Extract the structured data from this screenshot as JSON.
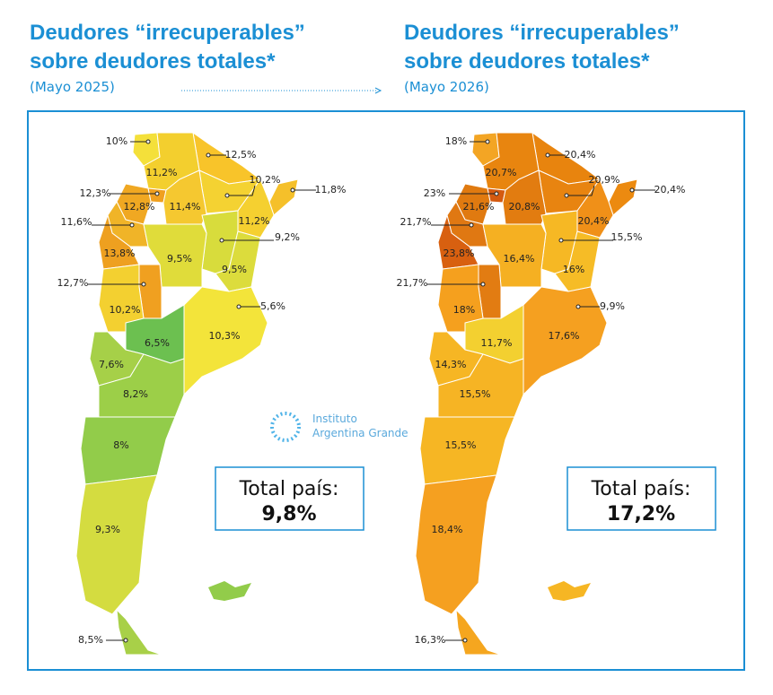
{
  "maps": [
    {
      "title_line1": "Deudores “irrecuperables”",
      "title_line2": "sobre deudores totales*",
      "subtitle": "(Mayo 2025)",
      "regions": [
        {
          "label": "10%",
          "color": "#f4e03a"
        },
        {
          "label": "12,5%",
          "color": "#f8c42a"
        },
        {
          "label": "11,2%",
          "color": "#f3cf2e"
        },
        {
          "label": "10,2%",
          "color": "#f4d232"
        },
        {
          "label": "11,8%",
          "color": "#f5c02a"
        },
        {
          "label": "12,3%",
          "color": "#f0a020"
        },
        {
          "label": "12,8%",
          "color": "#f0a822"
        },
        {
          "label": "11,4%",
          "color": "#f5c830"
        },
        {
          "label": "11,6%",
          "color": "#f0b428"
        },
        {
          "label": "11,2%",
          "color": "#f5d030"
        },
        {
          "label": "9,2%",
          "color": "#d8dc3c"
        },
        {
          "label": "13,8%",
          "color": "#eea020"
        },
        {
          "label": "9,5%",
          "color": "#e0dc3a"
        },
        {
          "label": "9,5%",
          "color": "#dcdc3c"
        },
        {
          "label": "12,7%",
          "color": "#f0a020"
        },
        {
          "label": "10,2%",
          "color": "#f3d030"
        },
        {
          "label": "5,6%",
          "color": "#ede030"
        },
        {
          "label": "10,3%",
          "color": "#f3e43a"
        },
        {
          "label": "6,5%",
          "color": "#6cc050"
        },
        {
          "label": "7,6%",
          "color": "#a6d048"
        },
        {
          "label": "8,2%",
          "color": "#9ccf48"
        },
        {
          "label": "8%",
          "color": "#92cc4a"
        },
        {
          "label": "9,3%",
          "color": "#d4dc40"
        },
        {
          "label": "8,5%",
          "color": "#a8d048"
        }
      ],
      "total_label": "Total país:",
      "total_value": "9,8%"
    },
    {
      "title_line1": "Deudores “irrecuperables”",
      "title_line2": "sobre deudores totales*",
      "subtitle": "(Mayo 2026)",
      "regions": [
        {
          "label": "18%",
          "color": "#f3a524"
        },
        {
          "label": "20,4%",
          "color": "#e8840e"
        },
        {
          "label": "20,7%",
          "color": "#e8850f"
        },
        {
          "label": "20,9%",
          "color": "#e88410"
        },
        {
          "label": "20,4%",
          "color": "#ec8a10"
        },
        {
          "label": "23%",
          "color": "#d45a10"
        },
        {
          "label": "21,6%",
          "color": "#e07a10"
        },
        {
          "label": "20,8%",
          "color": "#e27c10"
        },
        {
          "label": "21,7%",
          "color": "#e07812"
        },
        {
          "label": "20,4%",
          "color": "#f09018"
        },
        {
          "label": "15,5%",
          "color": "#f6b824"
        },
        {
          "label": "23,8%",
          "color": "#d86010"
        },
        {
          "label": "16,4%",
          "color": "#f5b022"
        },
        {
          "label": "16%",
          "color": "#f6bc26"
        },
        {
          "label": "21,7%",
          "color": "#e27c12"
        },
        {
          "label": "18%",
          "color": "#f5a01e"
        },
        {
          "label": "9,9%",
          "color": "#f5cc30"
        },
        {
          "label": "17,6%",
          "color": "#f5a020"
        },
        {
          "label": "11,7%",
          "color": "#f3d030"
        },
        {
          "label": "14,3%",
          "color": "#f6b624"
        },
        {
          "label": "15,5%",
          "color": "#f6b424"
        },
        {
          "label": "15,5%",
          "color": "#f6b624"
        },
        {
          "label": "18,4%",
          "color": "#f5a020"
        },
        {
          "label": "16,3%",
          "color": "#f5a61f"
        }
      ],
      "total_label": "Total país:",
      "total_value": "17,2%"
    }
  ],
  "logo": {
    "line1": "Instituto",
    "line2": "Argentina Grande"
  }
}
